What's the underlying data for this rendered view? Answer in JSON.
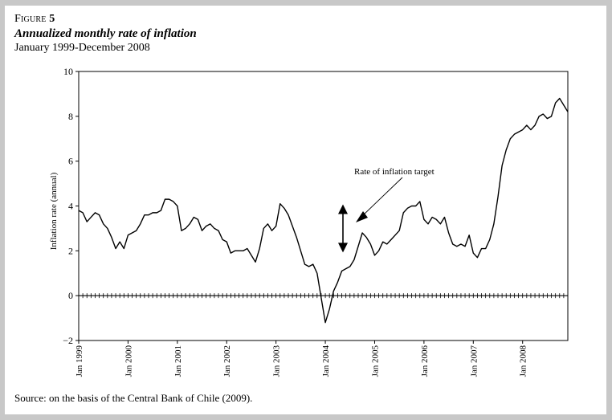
{
  "figure": {
    "label_word": "Figure",
    "label_number": "5",
    "title": "Annualized monthly rate of inflation",
    "subtitle": "January 1999-December 2008",
    "source": "Source: on the basis of the Central Bank of Chile (2009)."
  },
  "chart_data": {
    "type": "line",
    "title": "Annualized monthly rate of inflation",
    "subtitle": "January 1999-December 2008",
    "xlabel": "",
    "ylabel": "Inflation rate (annual)",
    "ylim": [
      -2,
      10
    ],
    "yticks": [
      -2,
      0,
      2,
      4,
      6,
      8,
      10
    ],
    "ytick_labels": [
      "−2",
      "0",
      "2",
      "4",
      "6",
      "8",
      "10"
    ],
    "xlim_months": [
      0,
      119
    ],
    "xtick_labels": [
      "Jan 1999",
      "Jan 2000",
      "Jan 2001",
      "Jan 2002",
      "Jan 2003",
      "Jan 2004",
      "Jan 2005",
      "Jan 2006",
      "Jan 2007",
      "Jan 2008"
    ],
    "xtick_months": [
      0,
      12,
      24,
      36,
      48,
      60,
      72,
      84,
      96,
      108
    ],
    "series": [
      {
        "name": "Inflation rate (annual)",
        "x": [
          0,
          1,
          2,
          3,
          4,
          5,
          6,
          7,
          8,
          9,
          10,
          11,
          12,
          13,
          14,
          15,
          16,
          17,
          18,
          19,
          20,
          21,
          22,
          23,
          24,
          25,
          26,
          27,
          28,
          29,
          30,
          31,
          32,
          33,
          34,
          35,
          36,
          37,
          38,
          39,
          40,
          41,
          42,
          43,
          44,
          45,
          46,
          47,
          48,
          49,
          50,
          51,
          52,
          53,
          54,
          55,
          56,
          57,
          58,
          59,
          60,
          61,
          62,
          63,
          64,
          65,
          66,
          67,
          68,
          69,
          70,
          71,
          72,
          73,
          74,
          75,
          76,
          77,
          78,
          79,
          80,
          81,
          82,
          83,
          84,
          85,
          86,
          87,
          88,
          89,
          90,
          91,
          92,
          93,
          94,
          95,
          96,
          97,
          98,
          99,
          100,
          101,
          102,
          103,
          104,
          105,
          106,
          107,
          108,
          109,
          110,
          111,
          112,
          113,
          114,
          115,
          116,
          117,
          118,
          119
        ],
        "values": [
          3.8,
          3.7,
          3.3,
          3.5,
          3.7,
          3.6,
          3.2,
          3.0,
          2.6,
          2.1,
          2.4,
          2.1,
          2.7,
          2.8,
          2.9,
          3.2,
          3.6,
          3.6,
          3.7,
          3.7,
          3.8,
          4.3,
          4.3,
          4.2,
          4.0,
          2.9,
          3.0,
          3.2,
          3.5,
          3.4,
          2.9,
          3.1,
          3.2,
          3.0,
          2.9,
          2.5,
          2.4,
          1.9,
          2.0,
          2.0,
          2.0,
          2.1,
          1.8,
          1.5,
          2.1,
          3.0,
          3.2,
          2.9,
          3.1,
          4.1,
          3.9,
          3.6,
          3.1,
          2.6,
          2.0,
          1.4,
          1.3,
          1.4,
          1.0,
          -0.1,
          -1.2,
          -0.6,
          0.2,
          0.6,
          1.1,
          1.2,
          1.3,
          1.6,
          2.2,
          2.8,
          2.6,
          2.3,
          1.8,
          2.0,
          2.4,
          2.3,
          2.5,
          2.7,
          2.9,
          3.7,
          3.9,
          4.0,
          4.0,
          4.2,
          3.4,
          3.2,
          3.5,
          3.4,
          3.2,
          3.5,
          2.8,
          2.3,
          2.2,
          2.3,
          2.2,
          2.7,
          1.9,
          1.7,
          2.1,
          2.1,
          2.5,
          3.2,
          4.4,
          5.8,
          6.5,
          7.0,
          7.2,
          7.3,
          7.4,
          7.6,
          7.4,
          7.6,
          8.0,
          8.1,
          7.9,
          8.0,
          8.6,
          8.8,
          8.5,
          8.2
        ]
      }
    ],
    "annotations": [
      {
        "text": "Rate of inflation target",
        "arrow_range": [
          2,
          4
        ]
      }
    ]
  }
}
